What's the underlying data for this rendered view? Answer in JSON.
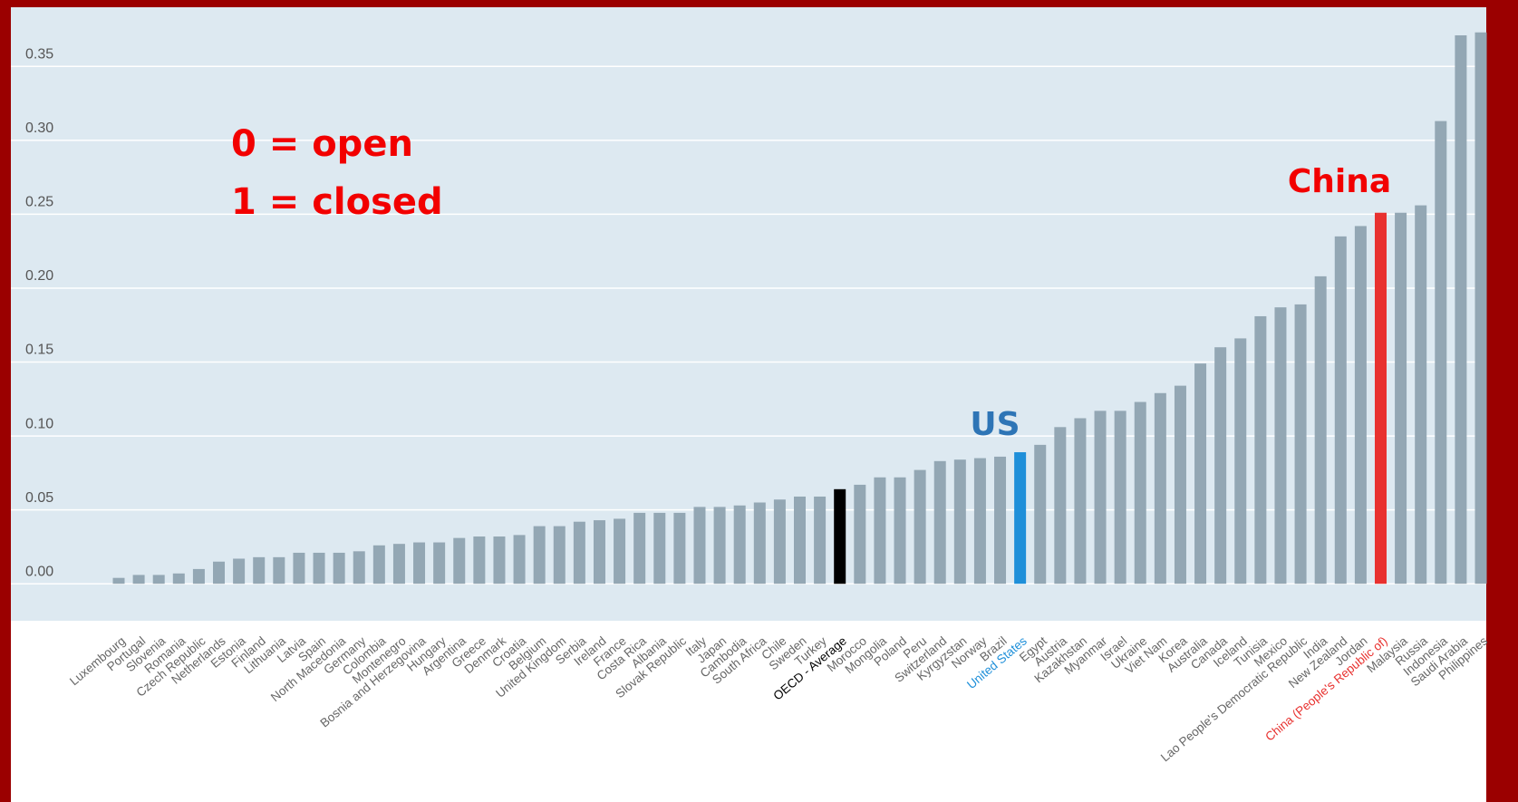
{
  "chart_data": {
    "type": "bar",
    "annotations": [
      "0 = open",
      "1 = closed",
      "US",
      "China"
    ],
    "categories": [
      "Luxembourg",
      "Portugal",
      "Slovenia",
      "Romania",
      "Czech Republic",
      "Netherlands",
      "Estonia",
      "Finland",
      "Lithuania",
      "Latvia",
      "Spain",
      "North Macedonia",
      "Germany",
      "Colombia",
      "Montenegro",
      "Bosnia and Herzegovina",
      "Hungary",
      "Argentina",
      "Greece",
      "Denmark",
      "Croatia",
      "Belgium",
      "United Kingdom",
      "Serbia",
      "Ireland",
      "France",
      "Costa Rica",
      "Albania",
      "Slovak Republic",
      "Italy",
      "Japan",
      "Cambodia",
      "South Africa",
      "Chile",
      "Sweden",
      "Turkey",
      "OECD - Average",
      "Morocco",
      "Mongolia",
      "Poland",
      "Peru",
      "Switzerland",
      "Kyrgyzstan",
      "Norway",
      "Brazil",
      "United States",
      "Egypt",
      "Austria",
      "Kazakhstan",
      "Myanmar",
      "Israel",
      "Ukraine",
      "Viet Nam",
      "Korea",
      "Australia",
      "Canada",
      "Iceland",
      "Tunisia",
      "Mexico",
      "Lao People's Democratic Republic",
      "India",
      "New Zealand",
      "Jordan",
      "China (People's Republic of)",
      "Malaysia",
      "Russia",
      "Indonesia",
      "Saudi Arabia",
      "Philippines"
    ],
    "values": [
      0.004,
      0.006,
      0.006,
      0.007,
      0.01,
      0.015,
      0.017,
      0.018,
      0.018,
      0.021,
      0.021,
      0.021,
      0.022,
      0.026,
      0.027,
      0.028,
      0.028,
      0.031,
      0.032,
      0.032,
      0.033,
      0.039,
      0.039,
      0.042,
      0.043,
      0.044,
      0.048,
      0.048,
      0.048,
      0.052,
      0.052,
      0.053,
      0.055,
      0.057,
      0.059,
      0.059,
      0.064,
      0.067,
      0.072,
      0.072,
      0.077,
      0.083,
      0.084,
      0.085,
      0.086,
      0.089,
      0.094,
      0.106,
      0.112,
      0.117,
      0.117,
      0.123,
      0.129,
      0.134,
      0.149,
      0.16,
      0.166,
      0.181,
      0.187,
      0.189,
      0.208,
      0.235,
      0.242,
      0.251,
      0.251,
      0.256,
      0.313,
      0.371,
      0.373
    ],
    "color": "#93a7b4",
    "highlight_colors": {
      "OECD - Average": "#000000",
      "United States": "#1e8fd9",
      "China (People's Republic of)": "#e8312f"
    },
    "ylim": [
      -0.025,
      0.39
    ],
    "yticks": [
      {
        "value": 0,
        "label": "0.00"
      },
      {
        "value": 0.05,
        "label": "0.05"
      },
      {
        "value": 0.1,
        "label": "0.10"
      },
      {
        "value": 0.15,
        "label": "0.15"
      },
      {
        "value": 0.2,
        "label": "0.20"
      },
      {
        "value": 0.25,
        "label": "0.25"
      },
      {
        "value": 0.3,
        "label": "0.30"
      },
      {
        "value": 0.35,
        "label": "0.35"
      }
    ],
    "grid": true
  }
}
